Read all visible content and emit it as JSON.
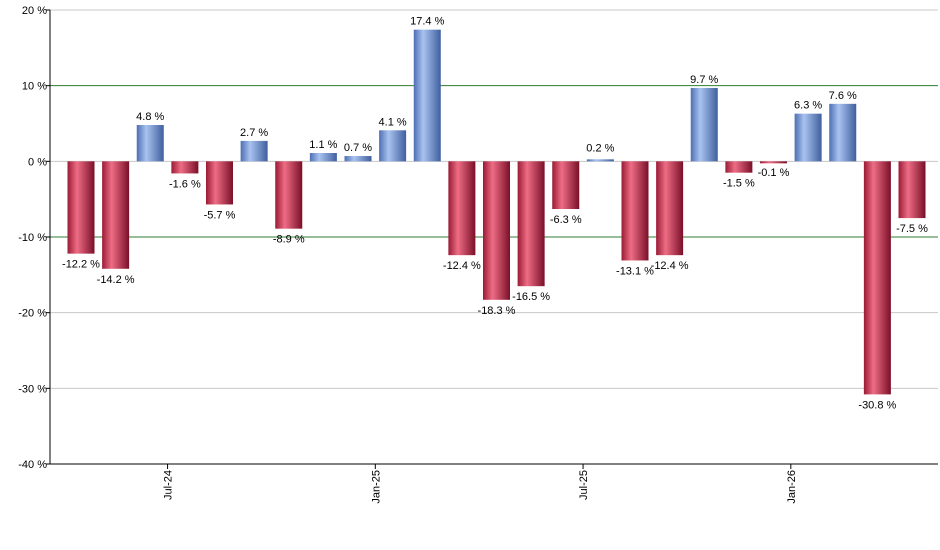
{
  "chart_data": {
    "type": "bar",
    "title": "",
    "xlabel": "",
    "ylabel": "",
    "ylim": [
      -40,
      20
    ],
    "y_ticks": [
      20,
      10,
      0,
      -10,
      -20,
      -30,
      -40
    ],
    "y_tick_labels": [
      "20 %",
      "10 %",
      "0 %",
      "-10 %",
      "-20 %",
      "-30 %",
      "-40 %"
    ],
    "reference_lines": [
      10,
      -10
    ],
    "x_tick_labels": [
      {
        "label": "Jul-24",
        "index": 2
      },
      {
        "label": "Jan-25",
        "index": 8
      },
      {
        "label": "Jul-25",
        "index": 14
      },
      {
        "label": "Jan-26",
        "index": 20
      }
    ],
    "values": [
      -12.2,
      -14.2,
      4.8,
      -1.6,
      -5.7,
      2.7,
      -8.9,
      1.1,
      0.7,
      4.1,
      17.4,
      -12.4,
      -18.3,
      -16.5,
      -6.3,
      0.2,
      -13.1,
      -12.4,
      9.7,
      -1.5,
      -0.1,
      6.3,
      7.6,
      -30.8,
      -7.5
    ],
    "labels": [
      "-12.2 %",
      "-14.2 %",
      "4.8 %",
      "-1.6 %",
      "-5.7 %",
      "2.7 %",
      "-8.9 %",
      "1.1 %",
      "0.7 %",
      "4.1 %",
      "17.4 %",
      "-12.4 %",
      "-18.3 %",
      "-16.5 %",
      "-6.3 %",
      "0.2 %",
      "-13.1 %",
      "-12.4 %",
      "9.7 %",
      "-1.5 %",
      "-0.1 %",
      "6.3 %",
      "7.6 %",
      "-30.8 %",
      "-7.5 %"
    ],
    "colors": {
      "positive": "#6e94d6",
      "negative": "#c8314d",
      "gridline": "#c8c8c8",
      "reference_line": "#2e7d32",
      "axis": "#000000"
    }
  }
}
